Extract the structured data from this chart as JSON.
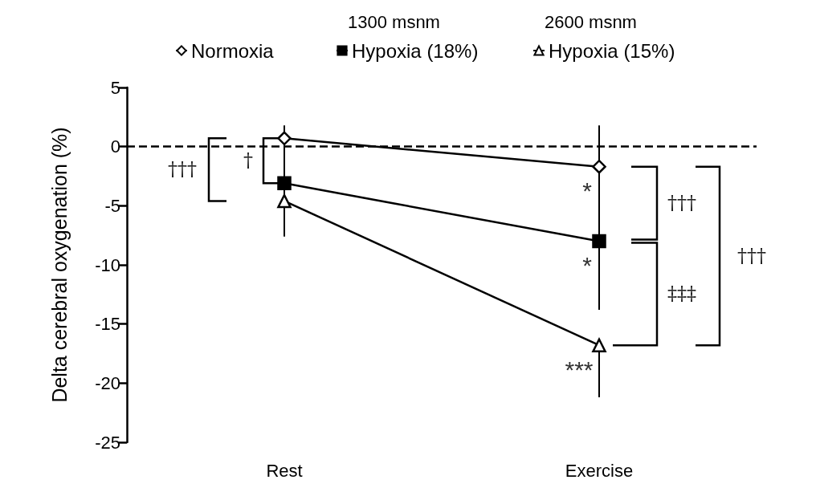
{
  "chart_data": {
    "type": "line",
    "ylabel": "Delta cerebral oxygenation (%)",
    "categories": [
      "Rest",
      "Exercise"
    ],
    "series": [
      {
        "name": "Normoxia",
        "color": "#000000",
        "marker": "diamond",
        "values": [
          0.7,
          -1.7
        ],
        "errors": [
          [
            0.7,
            1.8
          ],
          [
            -1.7,
            1.8
          ]
        ]
      },
      {
        "name": "Hypoxia (18%)",
        "color": "#000000",
        "marker": "square",
        "values": [
          -3.1,
          -8.0
        ],
        "errors": [
          [
            -7.3,
            0.9
          ],
          [
            -13.8,
            -2.2
          ]
        ]
      },
      {
        "name": "Hypoxia (15%)",
        "color": "#000000",
        "marker": "triangle",
        "values": [
          -4.6,
          -16.8
        ],
        "errors": [
          [
            -7.6,
            -4.6
          ],
          [
            -21.2,
            -16.8
          ]
        ]
      }
    ],
    "ylim": [
      -25,
      5
    ],
    "yticks": [
      -25,
      -20,
      -15,
      -10,
      -5,
      0,
      5
    ],
    "grid": false,
    "legend": "top",
    "ref_lines": [
      {
        "axis": "y",
        "value": 0,
        "color": "#000000",
        "line_style": "dashed"
      }
    ],
    "annotations": [
      "1300 msnm",
      "2600 msnm",
      "†††",
      "†",
      {
        "text": "*",
        "x": "Exercise",
        "y": -1.7
      },
      {
        "text": "*",
        "x": "Exercise",
        "y": -8.0
      },
      {
        "text": "***",
        "x": "Exercise",
        "y": -16.8
      },
      "†††",
      "‡‡‡",
      "†††"
    ]
  }
}
